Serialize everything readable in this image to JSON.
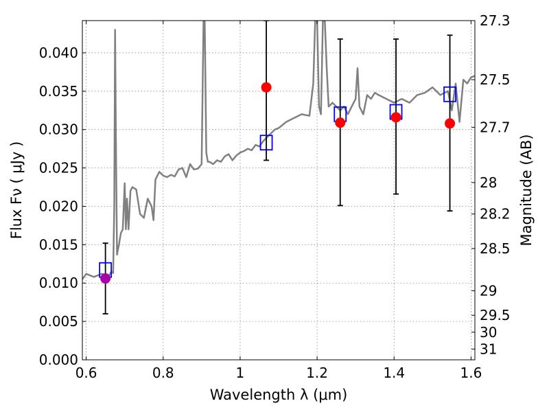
{
  "chart_data": {
    "type": "scatter",
    "title": "",
    "xlabel": "Wavelength  λ (μm)",
    "ylabel": "Flux  Fν  ( μJy )",
    "ylabel_right": "Magnitude (AB)",
    "xlim": [
      0.59,
      1.61
    ],
    "ylim": [
      0.0,
      0.0442
    ],
    "grid": true,
    "xticks": [
      0.6,
      0.8,
      1.0,
      1.2,
      1.4,
      1.6
    ],
    "xtick_labels": [
      "0.6",
      "0.8",
      "1",
      "1.2",
      "1.4",
      "1.6"
    ],
    "yticks": [
      0.0,
      0.005,
      0.01,
      0.015,
      0.02,
      0.025,
      0.03,
      0.035,
      0.04
    ],
    "ytick_labels": [
      "0.000",
      "0.005",
      "0.010",
      "0.015",
      "0.020",
      "0.025",
      "0.030",
      "0.035",
      "0.040"
    ],
    "right_ticks": [
      {
        "label": "27.3",
        "flux": 0.0442
      },
      {
        "label": "27.5",
        "flux": 0.0365
      },
      {
        "label": "27.7",
        "flux": 0.0303
      },
      {
        "label": "28",
        "flux": 0.0231
      },
      {
        "label": "28.2",
        "flux": 0.019
      },
      {
        "label": "28.5",
        "flux": 0.0145
      },
      {
        "label": "29",
        "flux": 0.009
      },
      {
        "label": "29.5",
        "flux": 0.0058
      },
      {
        "label": "30",
        "flux": 0.0036
      },
      {
        "label": "31",
        "flux": 0.0014
      }
    ],
    "series": [
      {
        "name": "Model SED",
        "kind": "line",
        "color": "#808080",
        "x": [
          0.59,
          0.6,
          0.62,
          0.64,
          0.66,
          0.665,
          0.67,
          0.673,
          0.675,
          0.677,
          0.68,
          0.685,
          0.69,
          0.695,
          0.7,
          0.703,
          0.706,
          0.71,
          0.715,
          0.72,
          0.73,
          0.74,
          0.75,
          0.76,
          0.77,
          0.775,
          0.78,
          0.79,
          0.8,
          0.81,
          0.82,
          0.83,
          0.84,
          0.85,
          0.86,
          0.87,
          0.88,
          0.89,
          0.9,
          0.905,
          0.908,
          0.912,
          0.916,
          0.92,
          0.93,
          0.94,
          0.95,
          0.96,
          0.97,
          0.98,
          0.99,
          1.0,
          1.01,
          1.02,
          1.03,
          1.04,
          1.05,
          1.06,
          1.07,
          1.08,
          1.09,
          1.1,
          1.12,
          1.14,
          1.16,
          1.18,
          1.19,
          1.195,
          1.2,
          1.205,
          1.21,
          1.215,
          1.22,
          1.225,
          1.23,
          1.24,
          1.25,
          1.26,
          1.27,
          1.28,
          1.29,
          1.3,
          1.305,
          1.31,
          1.32,
          1.33,
          1.34,
          1.35,
          1.36,
          1.38,
          1.4,
          1.42,
          1.44,
          1.46,
          1.48,
          1.5,
          1.52,
          1.54,
          1.55,
          1.56,
          1.57,
          1.58,
          1.59,
          1.6,
          1.61
        ],
        "y": [
          0.0105,
          0.0112,
          0.0108,
          0.0112,
          0.011,
          0.0115,
          0.0113,
          0.02,
          0.043,
          0.03,
          0.0137,
          0.015,
          0.0165,
          0.017,
          0.023,
          0.017,
          0.021,
          0.017,
          0.022,
          0.0225,
          0.0222,
          0.019,
          0.0185,
          0.021,
          0.02,
          0.0182,
          0.0235,
          0.0245,
          0.024,
          0.0238,
          0.0241,
          0.0239,
          0.0248,
          0.025,
          0.0238,
          0.0255,
          0.0248,
          0.0249,
          0.0255,
          0.0442,
          0.0442,
          0.027,
          0.0258,
          0.0258,
          0.0255,
          0.026,
          0.0258,
          0.0265,
          0.0268,
          0.026,
          0.0266,
          0.027,
          0.0272,
          0.0275,
          0.0273,
          0.028,
          0.0278,
          0.0285,
          0.029,
          0.0295,
          0.03,
          0.0302,
          0.031,
          0.0315,
          0.032,
          0.0318,
          0.036,
          0.0442,
          0.0442,
          0.033,
          0.032,
          0.0442,
          0.0442,
          0.038,
          0.033,
          0.0335,
          0.033,
          0.0325,
          0.033,
          0.032,
          0.033,
          0.034,
          0.038,
          0.033,
          0.032,
          0.0345,
          0.034,
          0.0348,
          0.0345,
          0.034,
          0.0335,
          0.034,
          0.0335,
          0.0345,
          0.0348,
          0.0355,
          0.0345,
          0.035,
          0.0325,
          0.036,
          0.031,
          0.0365,
          0.036,
          0.0368,
          0.037
        ]
      },
      {
        "name": "Observed flux",
        "kind": "points",
        "color": "#ff0000",
        "x": [
          1.068,
          1.26,
          1.405,
          1.545
        ],
        "y": [
          0.0355,
          0.0309,
          0.0316,
          0.0308
        ]
      },
      {
        "name": "Observed flux (optical)",
        "kind": "points",
        "color": "#aa00aa",
        "x": [
          0.65
        ],
        "y": [
          0.0106
        ]
      },
      {
        "name": "Model band flux",
        "kind": "squares",
        "color": "#0000ff",
        "x": [
          0.65,
          1.068,
          1.26,
          1.405,
          1.545
        ],
        "y": [
          0.0117,
          0.0283,
          0.032,
          0.0323,
          0.0346
        ]
      }
    ],
    "error_bars": [
      {
        "x": 0.65,
        "low": 0.006,
        "high": 0.0152
      },
      {
        "x": 1.068,
        "low": 0.026,
        "high": 0.0442
      },
      {
        "x": 1.26,
        "low": 0.0201,
        "high": 0.0418
      },
      {
        "x": 1.405,
        "low": 0.0216,
        "high": 0.0418
      },
      {
        "x": 1.545,
        "low": 0.0194,
        "high": 0.0423
      }
    ]
  }
}
